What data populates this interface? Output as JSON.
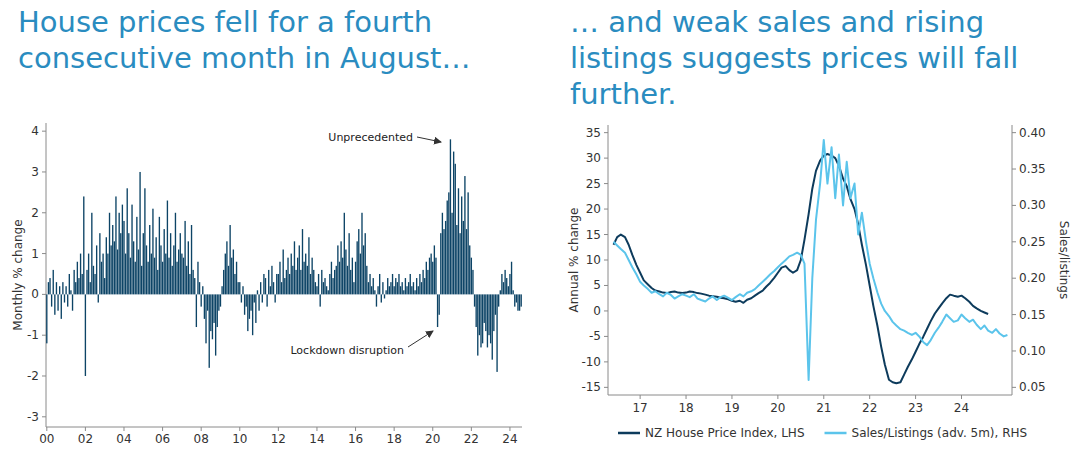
{
  "chart_data": [
    {
      "type": "bar",
      "title": "House prices fell for a fourth consecutive month in August…",
      "y_label": "Monthly % change",
      "categories": [
        "00",
        null,
        null,
        null,
        null,
        null,
        null,
        null,
        null,
        null,
        null,
        null,
        null,
        null,
        null,
        null,
        null,
        null,
        null,
        null,
        null,
        null,
        null,
        null,
        "02",
        null,
        null,
        null,
        null,
        null,
        null,
        null,
        null,
        null,
        null,
        null,
        null,
        null,
        null,
        null,
        null,
        null,
        null,
        null,
        null,
        null,
        null,
        null,
        "04",
        null,
        null,
        null,
        null,
        null,
        null,
        null,
        null,
        null,
        null,
        null,
        null,
        null,
        null,
        null,
        null,
        null,
        null,
        null,
        null,
        null,
        null,
        null,
        "06",
        null,
        null,
        null,
        null,
        null,
        null,
        null,
        null,
        null,
        null,
        null,
        null,
        null,
        null,
        null,
        null,
        null,
        null,
        null,
        null,
        null,
        null,
        null,
        "08",
        null,
        null,
        null,
        null,
        null,
        null,
        null,
        null,
        null,
        null,
        null,
        null,
        null,
        null,
        null,
        null,
        null,
        null,
        null,
        null,
        null,
        null,
        null,
        "10",
        null,
        null,
        null,
        null,
        null,
        null,
        null,
        null,
        null,
        null,
        null,
        null,
        null,
        null,
        null,
        null,
        null,
        null,
        null,
        null,
        null,
        null,
        null,
        "12",
        null,
        null,
        null,
        null,
        null,
        null,
        null,
        null,
        null,
        null,
        null,
        null,
        null,
        null,
        null,
        null,
        null,
        null,
        null,
        null,
        null,
        null,
        null,
        "14",
        null,
        null,
        null,
        null,
        null,
        null,
        null,
        null,
        null,
        null,
        null,
        null,
        null,
        null,
        null,
        null,
        null,
        null,
        null,
        null,
        null,
        null,
        null,
        "16",
        null,
        null,
        null,
        null,
        null,
        null,
        null,
        null,
        null,
        null,
        null,
        null,
        null,
        null,
        null,
        null,
        null,
        null,
        null,
        null,
        null,
        null,
        null,
        "18",
        null,
        null,
        null,
        null,
        null,
        null,
        null,
        null,
        null,
        null,
        null,
        null,
        null,
        null,
        null,
        null,
        null,
        null,
        null,
        null,
        null,
        null,
        null,
        "20",
        null,
        null,
        null,
        null,
        null,
        null,
        null,
        null,
        null,
        null,
        null,
        null,
        null,
        null,
        null,
        null,
        null,
        null,
        null,
        null,
        null,
        null,
        null,
        "22",
        null,
        null,
        null,
        null,
        null,
        null,
        null,
        null,
        null,
        null,
        null,
        null,
        null,
        null,
        null,
        null,
        null,
        null,
        null,
        null,
        null,
        null,
        null,
        "24",
        null,
        null,
        null,
        null,
        null,
        null,
        null
      ],
      "values": [
        -1.2,
        0.3,
        0.4,
        -0.3,
        0.6,
        -0.5,
        0.3,
        -0.4,
        0.2,
        -0.6,
        0.3,
        -0.2,
        0.2,
        -0.3,
        0.5,
        0.1,
        -0.4,
        0.6,
        0.3,
        0.8,
        0.4,
        1.0,
        0.5,
        2.4,
        -2.0,
        0.6,
        1.0,
        0.3,
        2.0,
        0.7,
        0.5,
        1.2,
        -0.2,
        1.5,
        0.8,
        1.0,
        0.4,
        1.4,
        1.0,
        2.0,
        1.2,
        1.7,
        1.3,
        2.4,
        1.1,
        2.0,
        1.5,
        2.2,
        1.8,
        1.0,
        2.6,
        1.5,
        0.9,
        2.2,
        1.3,
        0.8,
        1.9,
        1.1,
        3.0,
        0.7,
        1.5,
        2.6,
        1.2,
        0.8,
        1.7,
        1.0,
        2.1,
        0.9,
        1.4,
        0.6,
        1.9,
        1.2,
        0.8,
        1.6,
        1.0,
        2.3,
        0.9,
        1.5,
        0.7,
        1.2,
        2.0,
        0.8,
        1.1,
        1.5,
        1.0,
        0.9,
        1.8,
        0.7,
        1.3,
        0.5,
        1.7,
        0.6,
        0.4,
        -0.8,
        0.8,
        0.3,
        -0.3,
        0.2,
        -0.6,
        -1.2,
        -0.4,
        -1.8,
        -0.9,
        -1.1,
        -0.7,
        -1.5,
        -0.8,
        -0.4,
        -0.3,
        0.2,
        0.6,
        1.0,
        1.3,
        0.7,
        1.7,
        0.9,
        1.1,
        0.5,
        0.8,
        0.3,
        0.3,
        -0.2,
        0.2,
        -0.5,
        -0.3,
        -0.9,
        -0.6,
        -0.4,
        -1.0,
        -0.2,
        -0.7,
        0.1,
        -0.4,
        0.3,
        -0.2,
        0.5,
        0.4,
        -0.3,
        0.6,
        0.2,
        0.7,
        0.3,
        -0.2,
        0.5,
        0.5,
        0.8,
        0.3,
        1.1,
        0.4,
        0.6,
        0.9,
        0.5,
        1.0,
        0.7,
        1.3,
        0.6,
        0.9,
        1.2,
        0.6,
        1.6,
        0.8,
        1.0,
        0.7,
        1.4,
        0.5,
        0.9,
        0.6,
        0.3,
        0.2,
        0.5,
        -0.3,
        0.6,
        0.3,
        0.4,
        0.2,
        0.1,
        0.5,
        0.8,
        0.4,
        0.6,
        0.7,
        1.2,
        0.8,
        1.3,
        0.9,
        2.0,
        1.1,
        0.7,
        1.5,
        0.6,
        0.9,
        0.3,
        0.8,
        1.3,
        1.6,
        1.0,
        2.0,
        1.2,
        1.5,
        0.7,
        0.3,
        0.5,
        0.2,
        0.4,
        0.1,
        -0.3,
        0.2,
        0.5,
        -0.2,
        0.3,
        -0.1,
        0.1,
        0.4,
        0.2,
        0.3,
        0.5,
        0.2,
        0.4,
        0.3,
        0.5,
        0.2,
        0.3,
        0.1,
        0.4,
        0.2,
        0.3,
        0.5,
        0.2,
        0.3,
        0.1,
        0.4,
        0.2,
        0.5,
        0.3,
        0.6,
        0.4,
        0.8,
        0.6,
        0.9,
        1.0,
        0.8,
        1.2,
        0.9,
        -0.8,
        -0.5,
        1.5,
        2.0,
        1.6,
        1.8,
        2.3,
        2.5,
        3.8,
        2.0,
        3.5,
        3.2,
        1.7,
        2.6,
        1.5,
        2.4,
        1.8,
        2.9,
        1.6,
        2.5,
        1.2,
        0.9,
        0.6,
        -0.3,
        -0.8,
        -1.5,
        -1.0,
        -1.3,
        -1.2,
        -0.7,
        -0.9,
        -1.3,
        -1.0,
        -1.2,
        -1.6,
        -0.9,
        -0.5,
        -1.9,
        -0.3,
        0.1,
        0.5,
        0.3,
        0.6,
        0.4,
        0.2,
        0.5,
        0.8,
        0.1,
        -0.3,
        -0.2,
        -0.4,
        -0.4,
        -0.3
      ],
      "color": "#0d4466",
      "ylim": [
        -3.25,
        4.2
      ],
      "yticks": [
        -3,
        -2,
        -1,
        0,
        1,
        2,
        3,
        4
      ],
      "grid": false,
      "annotations": [
        {
          "text": "Unprecedented"
        },
        {
          "text": "Lockdown disruption"
        }
      ]
    },
    {
      "type": "line",
      "title": "… and weak sales and rising listings suggests prices will fall further.",
      "y_label": "Annual % change",
      "y2_label": "Sales/listings",
      "x": [
        2016.42,
        2016.5,
        2016.58,
        2016.67,
        2016.75,
        2016.83,
        2016.92,
        2017,
        2017.08,
        2017.17,
        2017.25,
        2017.33,
        2017.42,
        2017.5,
        2017.58,
        2017.67,
        2017.75,
        2017.83,
        2017.92,
        2018,
        2018.08,
        2018.17,
        2018.25,
        2018.33,
        2018.42,
        2018.5,
        2018.58,
        2018.67,
        2018.75,
        2018.83,
        2018.92,
        2019,
        2019.08,
        2019.17,
        2019.25,
        2019.33,
        2019.42,
        2019.5,
        2019.58,
        2019.67,
        2019.75,
        2019.83,
        2019.92,
        2020,
        2020.08,
        2020.17,
        2020.25,
        2020.33,
        2020.42,
        2020.5,
        2020.58,
        2020.67,
        2020.75,
        2020.83,
        2020.92,
        2021,
        2021.08,
        2021.17,
        2021.25,
        2021.33,
        2021.42,
        2021.5,
        2021.58,
        2021.67,
        2021.75,
        2021.83,
        2021.92,
        2022,
        2022.08,
        2022.17,
        2022.25,
        2022.33,
        2022.42,
        2022.5,
        2022.58,
        2022.67,
        2022.75,
        2022.83,
        2022.92,
        2023,
        2023.08,
        2023.17,
        2023.25,
        2023.33,
        2023.42,
        2023.5,
        2023.58,
        2023.67,
        2023.75,
        2023.83,
        2023.92,
        2024,
        2024.08,
        2024.17,
        2024.25,
        2024.33,
        2024.42,
        2024.5,
        2024.58,
        2024.67,
        2024.75,
        2024.83,
        2024.92,
        2025
      ],
      "xlim": [
        2016.3,
        2025.1
      ],
      "xticks": [
        {
          "value": 2017,
          "label": "17"
        },
        {
          "value": 2018,
          "label": "18"
        },
        {
          "value": 2019,
          "label": "19"
        },
        {
          "value": 2020,
          "label": "20"
        },
        {
          "value": 2021,
          "label": "21"
        },
        {
          "value": 2022,
          "label": "22"
        },
        {
          "value": 2023,
          "label": "23"
        },
        {
          "value": 2024,
          "label": "24"
        }
      ],
      "ylim": [
        -16.5,
        36.5
      ],
      "yticks": [
        -15,
        -10,
        -5,
        0,
        5,
        10,
        15,
        20,
        25,
        30,
        35
      ],
      "y2lim": [
        0.0395,
        0.4105
      ],
      "y2ticks": [
        0.05,
        {
          "value": 0.1,
          "label": "0.10"
        },
        0.15,
        {
          "value": 0.2,
          "label": "0.20"
        },
        0.25,
        {
          "value": 0.3,
          "label": "0.30"
        },
        0.35,
        {
          "value": 0.4,
          "label": "0.40"
        }
      ],
      "grid": false,
      "legend": "bottom",
      "series": [
        {
          "name": "NZ House Price Index, LHS",
          "color": "#0d3b5c",
          "values": [
            13.0,
            14.5,
            15.0,
            14.5,
            13.0,
            11.0,
            9.0,
            7.5,
            6.0,
            5.2,
            4.5,
            4.0,
            3.8,
            3.6,
            3.5,
            3.7,
            3.8,
            3.6,
            3.5,
            3.6,
            3.8,
            3.7,
            3.5,
            3.4,
            3.2,
            3.0,
            2.9,
            2.8,
            2.6,
            2.5,
            2.3,
            2.0,
            1.8,
            2.0,
            1.6,
            2.2,
            2.5,
            3.0,
            3.5,
            4.0,
            4.8,
            5.5,
            6.5,
            7.5,
            8.5,
            8.8,
            8.0,
            7.5,
            8.0,
            10.0,
            14.0,
            19.0,
            24.0,
            27.5,
            29.5,
            30.5,
            30.8,
            30.5,
            30.0,
            28.5,
            26.0,
            24.5,
            22.0,
            20.0,
            17.0,
            13.0,
            9.0,
            5.0,
            1.0,
            -3.0,
            -7.0,
            -10.5,
            -13.5,
            -14.0,
            -14.2,
            -14.0,
            -12.5,
            -11.0,
            -9.5,
            -8.0,
            -6.5,
            -5.0,
            -3.5,
            -2.0,
            -0.5,
            0.5,
            1.5,
            2.5,
            3.2,
            3.0,
            2.8,
            3.0,
            2.5,
            1.8,
            1.0,
            0.5,
            0.0,
            -0.3,
            -0.6,
            null,
            null,
            null,
            null,
            null
          ]
        },
        {
          "name": "Sales/Listings (adv. 5m), RHS",
          "color": "#5bc4eb",
          "axis": "y2",
          "values": [
            0.25,
            0.245,
            0.24,
            0.235,
            0.225,
            0.215,
            0.205,
            0.195,
            0.19,
            0.185,
            0.18,
            0.182,
            0.178,
            0.175,
            0.18,
            0.177,
            0.172,
            0.175,
            0.178,
            0.176,
            0.174,
            0.178,
            0.172,
            0.17,
            0.168,
            0.172,
            0.175,
            0.17,
            0.174,
            0.176,
            0.173,
            0.17,
            0.174,
            0.178,
            0.175,
            0.18,
            0.182,
            0.185,
            0.19,
            0.195,
            0.2,
            0.205,
            0.21,
            0.215,
            0.22,
            0.225,
            0.23,
            0.232,
            0.235,
            0.232,
            0.22,
            0.06,
            0.2,
            0.28,
            0.33,
            0.39,
            0.33,
            0.38,
            0.31,
            0.37,
            0.3,
            0.36,
            0.31,
            0.33,
            0.26,
            0.29,
            0.25,
            0.22,
            0.2,
            0.18,
            0.165,
            0.155,
            0.148,
            0.14,
            0.135,
            0.13,
            0.128,
            0.125,
            0.122,
            0.125,
            0.12,
            0.112,
            0.108,
            0.115,
            0.125,
            0.132,
            0.14,
            0.15,
            0.145,
            0.14,
            0.142,
            0.15,
            0.145,
            0.14,
            0.143,
            0.136,
            0.13,
            0.135,
            0.128,
            0.125,
            0.13,
            0.124,
            0.12,
            0.122
          ]
        }
      ]
    }
  ]
}
